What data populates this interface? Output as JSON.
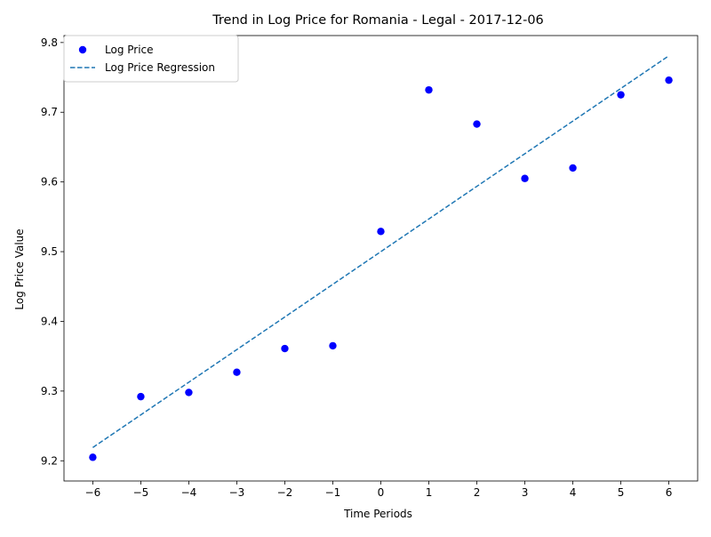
{
  "chart_data": {
    "type": "scatter",
    "title": "Trend in Log Price for Romania - Legal - 2017-12-06",
    "xlabel": "Time Periods",
    "ylabel": "Log Price Value",
    "xlim": [
      -6.6,
      6.6
    ],
    "ylim": [
      9.171,
      9.81
    ],
    "xticks": [
      -6,
      -5,
      -4,
      -3,
      -2,
      -1,
      0,
      1,
      2,
      3,
      4,
      5,
      6
    ],
    "yticks": [
      9.2,
      9.3,
      9.4,
      9.5,
      9.6,
      9.7,
      9.8
    ],
    "xtick_labels": [
      "−6",
      "−5",
      "−4",
      "−3",
      "−2",
      "−1",
      "0",
      "1",
      "2",
      "3",
      "4",
      "5",
      "6"
    ],
    "ytick_labels": [
      "9.2",
      "9.3",
      "9.4",
      "9.5",
      "9.6",
      "9.7",
      "9.8"
    ],
    "grid": false,
    "legend_position": "top-left",
    "series": [
      {
        "name": "Log Price",
        "kind": "scatter",
        "color": "#0000ff",
        "x": [
          -6,
          -5,
          -4,
          -3,
          -2,
          -1,
          0,
          1,
          2,
          3,
          4,
          5,
          6
        ],
        "y": [
          9.205,
          9.292,
          9.298,
          9.327,
          9.361,
          9.365,
          9.529,
          9.732,
          9.683,
          9.605,
          9.62,
          9.725,
          9.746
        ]
      },
      {
        "name": "Log Price Regression",
        "kind": "line",
        "style": "dashed",
        "color": "#1f77b4",
        "x": [
          -6,
          6
        ],
        "y": [
          9.219,
          9.781
        ]
      }
    ]
  }
}
